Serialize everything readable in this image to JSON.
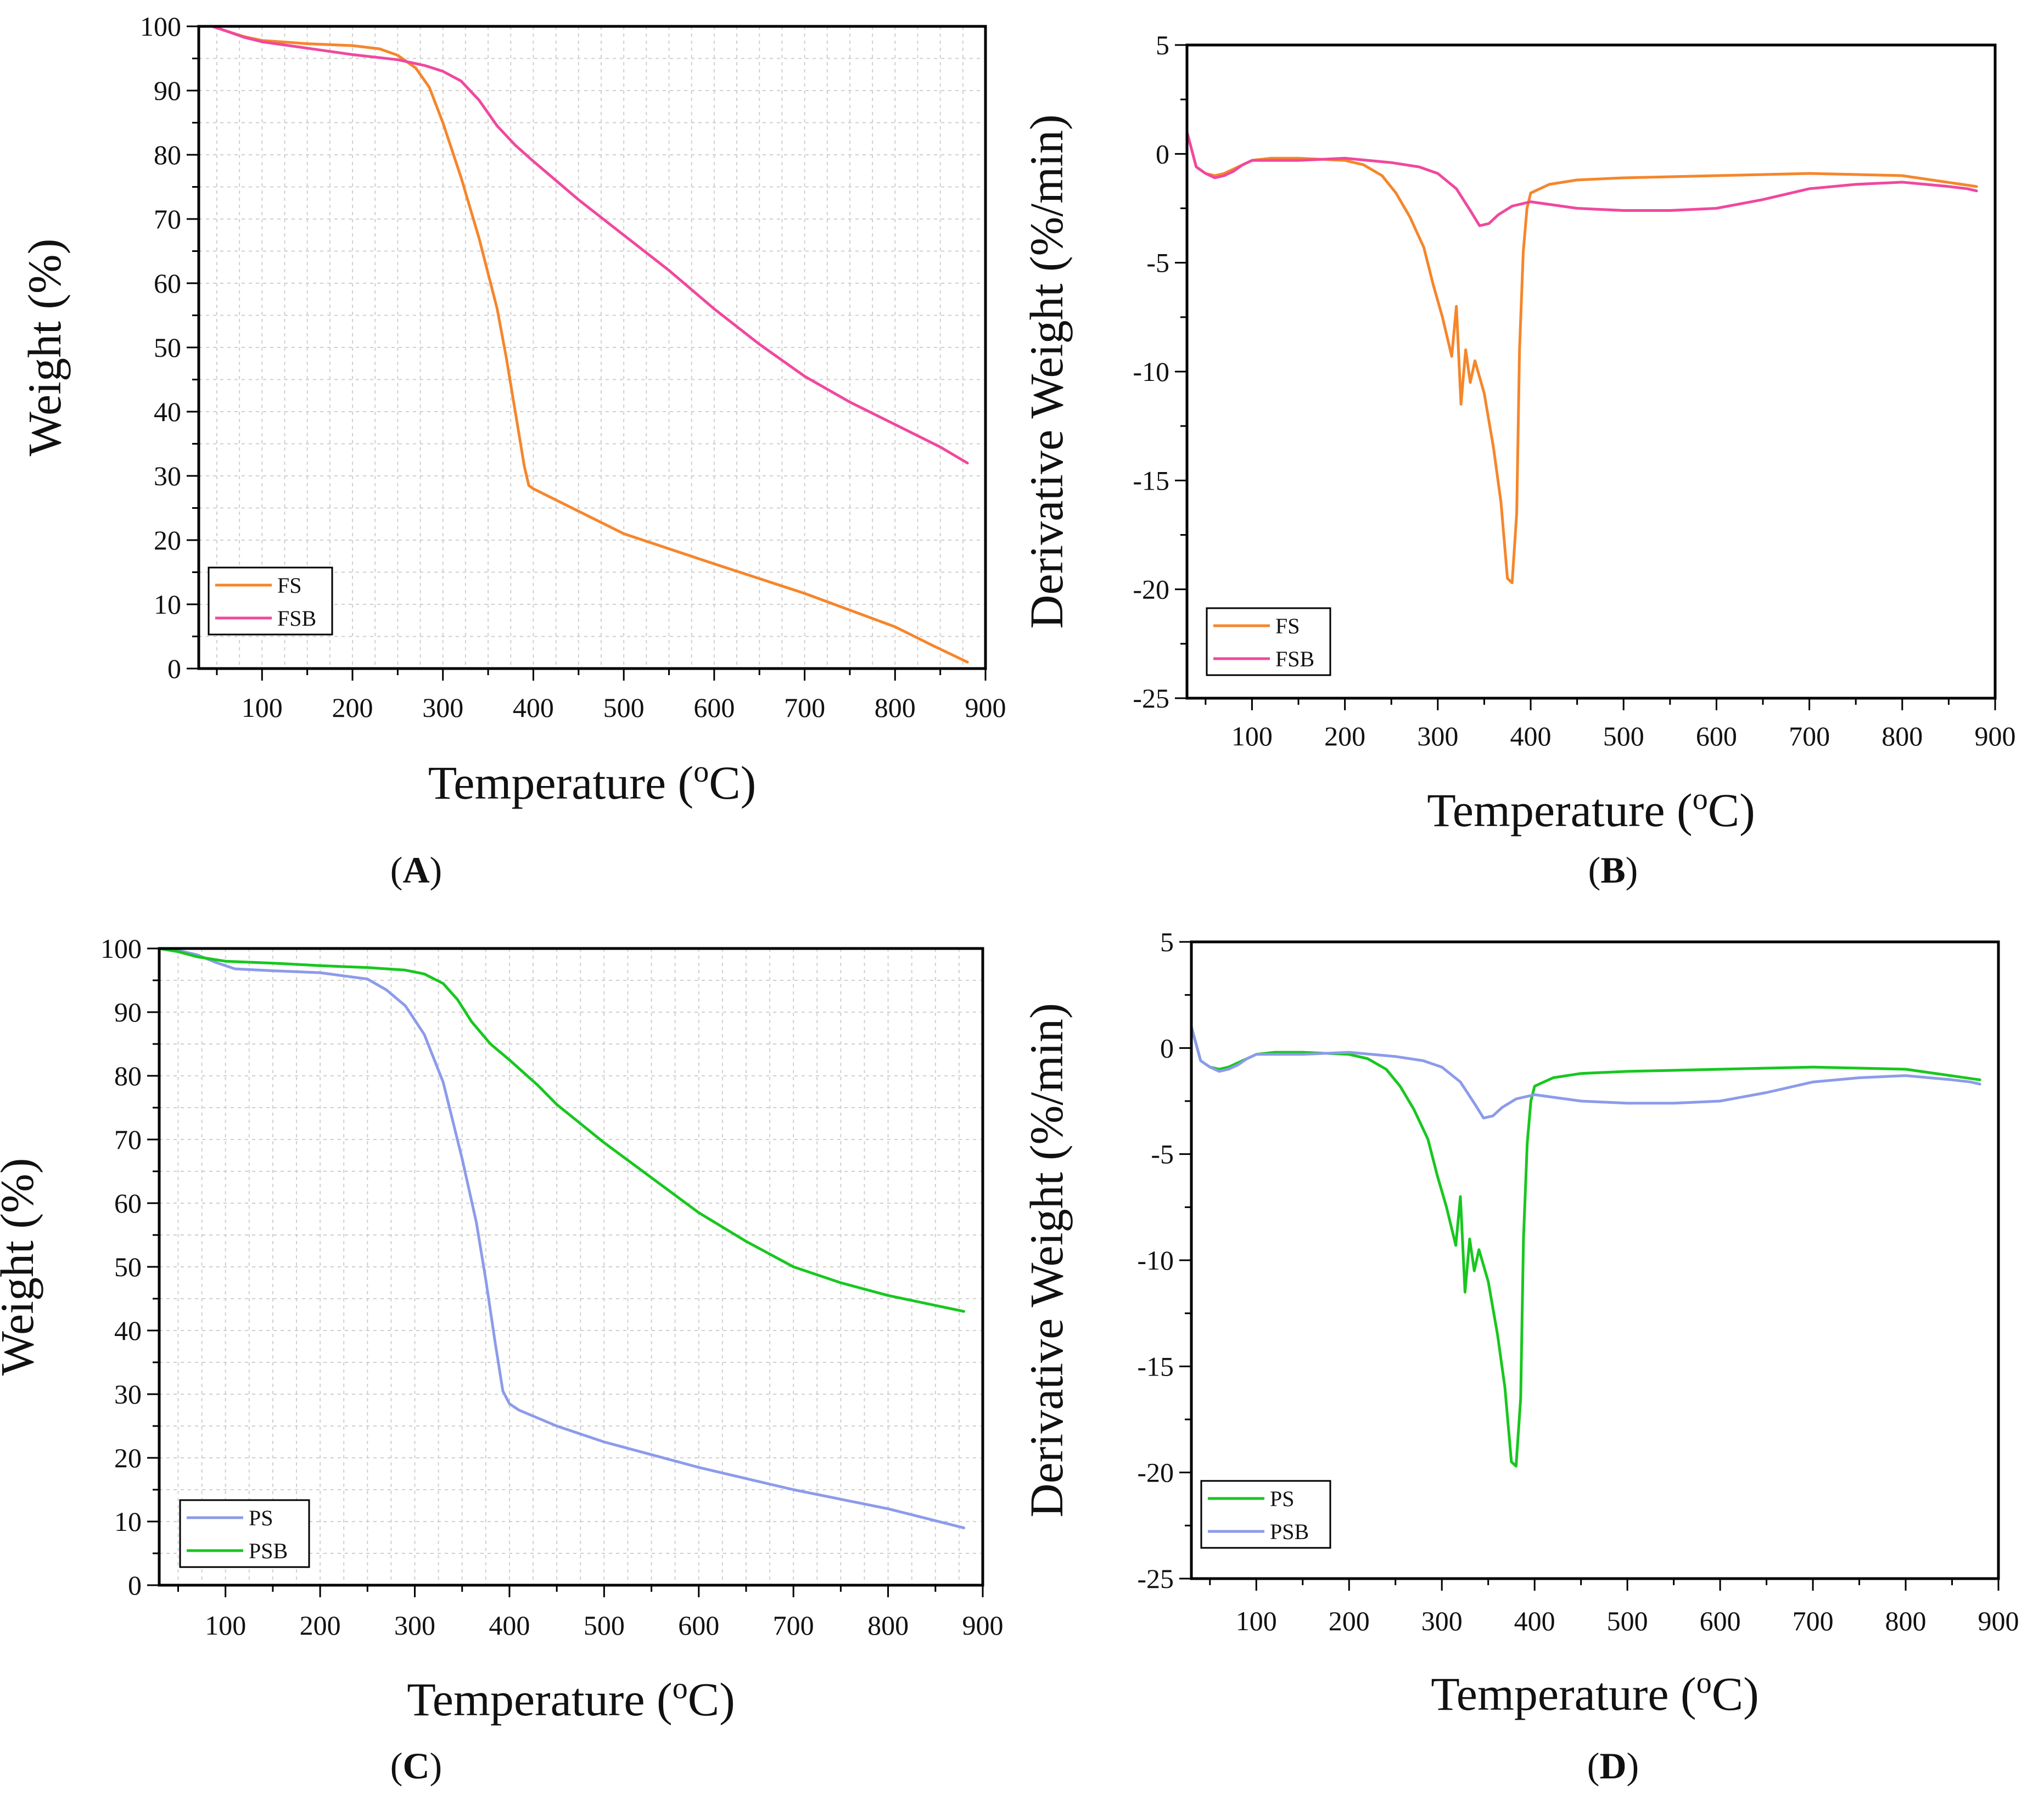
{
  "chart_data": [
    {
      "id": "A",
      "panel_label": "(A)",
      "type": "line",
      "xlabel": "Temperature (°C)",
      "ylabel": "Weight (%)",
      "xlim": [
        30,
        900
      ],
      "ylim": [
        0,
        100
      ],
      "xticks": [
        100,
        200,
        300,
        400,
        500,
        600,
        700,
        800,
        900
      ],
      "yticks": [
        0,
        10,
        20,
        30,
        40,
        50,
        60,
        70,
        80,
        90,
        100
      ],
      "grid": true,
      "legend_position": "bottom-left",
      "series": [
        {
          "name": "FS",
          "color": "#F5862B",
          "x": [
            45,
            60,
            80,
            100,
            150,
            200,
            230,
            250,
            270,
            285,
            300,
            320,
            340,
            360,
            370,
            380,
            390,
            395,
            400,
            450,
            500,
            600,
            700,
            800,
            840,
            880
          ],
          "y": [
            100,
            99.3,
            98.4,
            97.8,
            97.3,
            97,
            96.5,
            95.5,
            93.5,
            90.5,
            85,
            76.5,
            67,
            56,
            48.5,
            40,
            31.5,
            28.5,
            28,
            24.5,
            21,
            16.3,
            11.7,
            6.5,
            3.7,
            1
          ]
        },
        {
          "name": "FSB",
          "color": "#F0489E",
          "x": [
            45,
            60,
            80,
            100,
            150,
            200,
            250,
            280,
            300,
            320,
            340,
            360,
            380,
            400,
            450,
            500,
            550,
            600,
            650,
            700,
            750,
            800,
            850,
            880
          ],
          "y": [
            100,
            99.3,
            98.3,
            97.6,
            96.6,
            95.6,
            94.8,
            93.9,
            93,
            91.5,
            88.5,
            84.5,
            81.5,
            79,
            73,
            67.5,
            62,
            56,
            50.5,
            45.5,
            41.5,
            38,
            34.5,
            32
          ]
        }
      ]
    },
    {
      "id": "B",
      "panel_label": "(B)",
      "type": "line",
      "xlabel": "Temperature (°C)",
      "ylabel": "Derivative Weight (%/min)",
      "xlim": [
        30,
        900
      ],
      "ylim": [
        -25,
        5
      ],
      "xticks": [
        100,
        200,
        300,
        400,
        500,
        600,
        700,
        800,
        900
      ],
      "yticks": [
        5,
        0,
        -5,
        -10,
        -15,
        -20,
        -25
      ],
      "grid": false,
      "legend_position": "bottom-left",
      "series": [
        {
          "name": "FS",
          "color": "#F5862B",
          "x": [
            30,
            40,
            50,
            60,
            70,
            80,
            90,
            100,
            120,
            150,
            200,
            220,
            240,
            255,
            270,
            285,
            295,
            305,
            315,
            320,
            325,
            330,
            335,
            340,
            350,
            360,
            368,
            375,
            380,
            385,
            388,
            392,
            396,
            400,
            420,
            450,
            500,
            600,
            700,
            800,
            880
          ],
          "y": [
            1,
            -0.6,
            -0.9,
            -1,
            -0.9,
            -0.7,
            -0.5,
            -0.3,
            -0.2,
            -0.2,
            -0.3,
            -0.5,
            -1,
            -1.8,
            -2.9,
            -4.3,
            -6,
            -7.5,
            -9.3,
            -7,
            -11.5,
            -9,
            -10.5,
            -9.5,
            -11,
            -13.5,
            -16,
            -19.5,
            -19.7,
            -16.5,
            -9,
            -4.5,
            -2.5,
            -1.8,
            -1.4,
            -1.2,
            -1.1,
            -1,
            -0.9,
            -1,
            -1.5
          ]
        },
        {
          "name": "FSB",
          "color": "#F0489E",
          "x": [
            30,
            40,
            50,
            60,
            70,
            80,
            90,
            100,
            150,
            200,
            250,
            280,
            300,
            320,
            335,
            345,
            355,
            365,
            380,
            400,
            450,
            500,
            550,
            600,
            650,
            700,
            750,
            800,
            850,
            870,
            880
          ],
          "y": [
            1,
            -0.6,
            -0.9,
            -1.1,
            -1,
            -0.8,
            -0.5,
            -0.3,
            -0.3,
            -0.2,
            -0.4,
            -0.6,
            -0.9,
            -1.6,
            -2.6,
            -3.3,
            -3.2,
            -2.8,
            -2.4,
            -2.2,
            -2.5,
            -2.6,
            -2.6,
            -2.5,
            -2.1,
            -1.6,
            -1.4,
            -1.3,
            -1.5,
            -1.6,
            -1.7
          ]
        }
      ]
    },
    {
      "id": "C",
      "panel_label": "(C)",
      "type": "line",
      "xlabel": "Temperature (°C)",
      "ylabel": "Weight (%)",
      "xlim": [
        30,
        900
      ],
      "ylim": [
        0,
        100
      ],
      "xticks": [
        100,
        200,
        300,
        400,
        500,
        600,
        700,
        800,
        900
      ],
      "yticks": [
        0,
        10,
        20,
        30,
        40,
        50,
        60,
        70,
        80,
        90,
        100
      ],
      "grid": true,
      "legend_position": "bottom-left",
      "series": [
        {
          "name": "PS",
          "color": "#8C9BEA",
          "x": [
            30,
            50,
            70,
            90,
            110,
            150,
            200,
            250,
            270,
            290,
            310,
            330,
            350,
            365,
            375,
            385,
            393,
            400,
            410,
            450,
            500,
            600,
            700,
            800,
            880
          ],
          "y": [
            100,
            99.7,
            99,
            97.8,
            96.8,
            96.5,
            96.2,
            95.2,
            93.5,
            91,
            86.5,
            79,
            67,
            57,
            48,
            38,
            30.5,
            28.5,
            27.5,
            25,
            22.5,
            18.5,
            15,
            12,
            9
          ]
        },
        {
          "name": "PSB",
          "color": "#18C71F",
          "x": [
            30,
            50,
            70,
            100,
            150,
            200,
            250,
            290,
            310,
            330,
            345,
            360,
            380,
            400,
            430,
            450,
            500,
            550,
            600,
            650,
            700,
            750,
            800,
            880
          ],
          "y": [
            100,
            99.5,
            98.7,
            98,
            97.7,
            97.3,
            97,
            96.6,
            96,
            94.5,
            92,
            88.5,
            85,
            82.5,
            78.5,
            75.5,
            69.5,
            64,
            58.5,
            54,
            50,
            47.5,
            45.5,
            43
          ]
        }
      ]
    },
    {
      "id": "D",
      "panel_label": "(D)",
      "type": "line",
      "xlabel": "Temperature (°C)",
      "ylabel": "Derivative Weight (%/min)",
      "xlim": [
        30,
        900
      ],
      "ylim": [
        -25,
        5
      ],
      "xticks": [
        100,
        200,
        300,
        400,
        500,
        600,
        700,
        800,
        900
      ],
      "yticks": [
        5,
        0,
        -5,
        -10,
        -15,
        -20,
        -25
      ],
      "grid": false,
      "legend_position": "bottom-left",
      "series": [
        {
          "name": "PS",
          "color": "#18C71F",
          "x": [
            30,
            40,
            50,
            60,
            70,
            80,
            90,
            100,
            120,
            150,
            200,
            220,
            240,
            255,
            270,
            285,
            295,
            305,
            315,
            320,
            325,
            330,
            335,
            340,
            350,
            360,
            368,
            375,
            380,
            385,
            388,
            392,
            396,
            400,
            420,
            450,
            500,
            600,
            700,
            800,
            880
          ],
          "y": [
            1,
            -0.6,
            -0.9,
            -1,
            -0.9,
            -0.7,
            -0.5,
            -0.3,
            -0.2,
            -0.2,
            -0.3,
            -0.5,
            -1,
            -1.8,
            -2.9,
            -4.3,
            -6,
            -7.5,
            -9.3,
            -7,
            -11.5,
            -9,
            -10.5,
            -9.5,
            -11,
            -13.5,
            -16,
            -19.5,
            -19.7,
            -16.5,
            -9,
            -4.5,
            -2.5,
            -1.8,
            -1.4,
            -1.2,
            -1.1,
            -1,
            -0.9,
            -1,
            -1.5
          ]
        },
        {
          "name": "PSB",
          "color": "#8C9BEA",
          "x": [
            30,
            40,
            50,
            60,
            70,
            80,
            90,
            100,
            150,
            200,
            250,
            280,
            300,
            320,
            335,
            345,
            355,
            365,
            380,
            400,
            450,
            500,
            550,
            600,
            650,
            700,
            750,
            800,
            850,
            870,
            880
          ],
          "y": [
            1,
            -0.6,
            -0.9,
            -1.1,
            -1,
            -0.8,
            -0.5,
            -0.3,
            -0.3,
            -0.2,
            -0.4,
            -0.6,
            -0.9,
            -1.6,
            -2.6,
            -3.3,
            -3.2,
            -2.8,
            -2.4,
            -2.2,
            -2.5,
            -2.6,
            -2.6,
            -2.5,
            -2.1,
            -1.6,
            -1.4,
            -1.3,
            -1.5,
            -1.6,
            -1.7
          ]
        }
      ]
    }
  ]
}
